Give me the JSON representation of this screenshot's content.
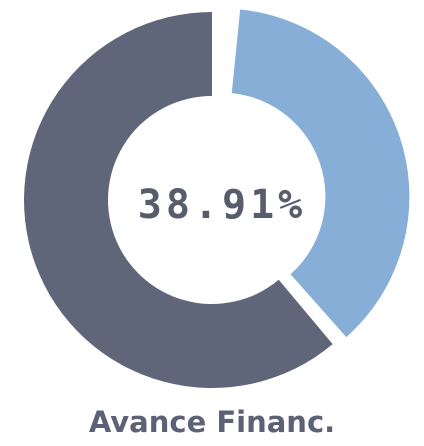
{
  "chart_data": {
    "type": "donut",
    "title": "Avance Financ.",
    "values": [
      38.91,
      61.09
    ],
    "value_labels": [
      "38.91%",
      null
    ],
    "colors": [
      "#86aed6",
      "#5f6679"
    ]
  }
}
